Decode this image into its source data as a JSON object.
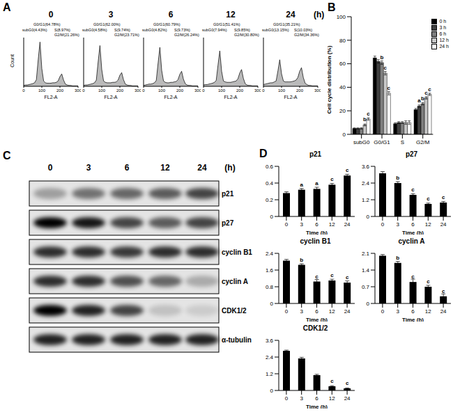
{
  "chart_data": [
    {
      "panel": "A",
      "type": "area",
      "x_label": "FL2-A",
      "y_label": "Count",
      "x": [
        0,
        10,
        20,
        30,
        40,
        50,
        60,
        70,
        80,
        90,
        100,
        110,
        120,
        130,
        140,
        150,
        160,
        170,
        180,
        190,
        200,
        210,
        220,
        230,
        240,
        250,
        260,
        270,
        280,
        290,
        300
      ],
      "xlim": [
        0,
        300
      ],
      "xticks": [
        0,
        100,
        200,
        300
      ],
      "ylim": [
        0,
        110
      ],
      "yticks": [
        0,
        50,
        100
      ],
      "tick_labels": "x",
      "color": "#8c8c8c",
      "time_unit": "(h)",
      "series": [
        {
          "name": "0",
          "gates": [
            "subG0(4.43%)",
            "G0/G1(64.78%)",
            "S(8.97%)",
            "G2/M(21.26%)"
          ],
          "values": [
            2,
            3,
            3,
            4,
            5,
            6,
            8,
            15,
            60,
            100,
            40,
            12,
            8,
            7,
            7,
            7,
            8,
            8,
            9,
            12,
            22,
            28,
            14,
            5,
            3,
            2,
            2,
            1,
            1,
            1,
            1
          ]
        },
        {
          "name": "3",
          "gates": [
            "subG0(4.58%)",
            "G0/G1(62.00%)",
            "S(9.74%)",
            "G2/M(23.71%)"
          ],
          "values": [
            2,
            3,
            3,
            4,
            5,
            6,
            8,
            14,
            55,
            92,
            38,
            12,
            9,
            8,
            8,
            8,
            9,
            9,
            10,
            14,
            25,
            31,
            15,
            5,
            3,
            2,
            2,
            1,
            1,
            1,
            1
          ]
        },
        {
          "name": "6",
          "gates": [
            "subG0(4.82%)",
            "G0/G1(60.79%)",
            "S(9.73%)",
            "G2/M(26.24%)"
          ],
          "values": [
            2,
            3,
            4,
            5,
            5,
            6,
            8,
            13,
            52,
            88,
            36,
            12,
            9,
            8,
            8,
            9,
            9,
            10,
            11,
            15,
            27,
            34,
            16,
            6,
            3,
            2,
            2,
            1,
            1,
            1,
            1
          ]
        },
        {
          "name": "12",
          "gates": [
            "subG0(7.94%)",
            "G0/G1(51.41%)",
            "S(9.85%)",
            "G2/M(30.80%)"
          ],
          "values": [
            3,
            4,
            4,
            5,
            6,
            7,
            9,
            13,
            48,
            80,
            34,
            12,
            10,
            9,
            9,
            9,
            10,
            11,
            12,
            17,
            30,
            38,
            18,
            6,
            3,
            2,
            2,
            1,
            1,
            1,
            1
          ]
        },
        {
          "name": "24",
          "gates": [
            "subG0(13.15%)",
            "G0/G1(35.21%)",
            "S(10.03%)",
            "G2/M(34.36%)"
          ],
          "values": [
            4,
            5,
            6,
            7,
            8,
            8,
            10,
            12,
            35,
            60,
            28,
            12,
            10,
            10,
            10,
            10,
            11,
            12,
            14,
            20,
            34,
            42,
            20,
            7,
            4,
            2,
            2,
            1,
            1,
            1,
            1
          ]
        }
      ]
    },
    {
      "panel": "B",
      "type": "bar",
      "y_label": "Cell cycle distribution (%)",
      "categories": [
        "subG0",
        "G0/G1",
        "S",
        "G2/M"
      ],
      "ylim": [
        0,
        100
      ],
      "yticks": [
        0,
        20,
        40,
        60,
        80,
        100
      ],
      "legend": "top-right",
      "series": [
        {
          "name": "0 h",
          "color": "#000000",
          "values": [
            5,
            65,
            9,
            21
          ],
          "errors": [
            0.5,
            1.5,
            0.8,
            1
          ],
          "letters": [
            null,
            null,
            null,
            null
          ]
        },
        {
          "name": "3 h",
          "color": "#404040",
          "values": [
            5,
            62,
            10,
            24
          ],
          "errors": [
            0.5,
            1.5,
            0.8,
            1
          ],
          "letters": [
            null,
            null,
            null,
            "a"
          ]
        },
        {
          "name": "6 h",
          "color": "#808080",
          "values": [
            5,
            61,
            10,
            26
          ],
          "errors": [
            0.6,
            1.5,
            0.8,
            1
          ],
          "letters": [
            null,
            "b",
            null,
            "b"
          ]
        },
        {
          "name": "12 h",
          "color": "#c8c8c8",
          "values": [
            8,
            52,
            10,
            31
          ],
          "errors": [
            0.8,
            1.5,
            1.5,
            1
          ],
          "letters": [
            "b",
            "c",
            null,
            "c"
          ]
        },
        {
          "name": "24 h",
          "color": "#ffffff",
          "values": [
            13,
            35,
            10,
            34
          ],
          "errors": [
            1,
            1.5,
            1.5,
            1
          ],
          "letters": [
            "c",
            "c",
            null,
            "c"
          ]
        }
      ]
    },
    {
      "panel": "C",
      "type": "blot",
      "lanes": [
        "0",
        "3",
        "6",
        "12",
        "24"
      ],
      "lane_unit": "(h)",
      "rows": [
        {
          "name": "p21",
          "intensity": [
            0.3,
            0.5,
            0.55,
            0.6,
            0.7
          ]
        },
        {
          "name": "p27",
          "intensity": [
            1,
            0.9,
            0.7,
            0.6,
            0.7
          ]
        },
        {
          "name": "cyclin B1",
          "intensity": [
            0.8,
            0.8,
            0.75,
            0.8,
            0.8
          ]
        },
        {
          "name": "cyclin A",
          "intensity": [
            0.8,
            0.8,
            0.65,
            0.55,
            0.25
          ]
        },
        {
          "name": "CDK1/2",
          "intensity": [
            1,
            0.85,
            0.7,
            0.15,
            0.1
          ]
        },
        {
          "name": "α-tubulin",
          "intensity": [
            0.85,
            0.85,
            0.85,
            0.85,
            0.85
          ]
        }
      ]
    },
    {
      "panel": "D",
      "type": "bar",
      "title": "p21",
      "x_label": "Time (h)",
      "categories": [
        "0",
        "3",
        "6",
        "12",
        "24"
      ],
      "values": [
        0.28,
        0.32,
        0.33,
        0.38,
        0.49
      ],
      "errors": [
        0.015,
        0.015,
        0.02,
        0.015,
        0.015
      ],
      "letters": [
        null,
        "a",
        "a",
        "c",
        "c"
      ],
      "ylim": [
        0,
        0.6
      ],
      "yticks": [
        0,
        0.2,
        0.4,
        0.6
      ],
      "color": "#000000"
    },
    {
      "type": "bar",
      "title": "p27",
      "x_label": "Time (h)",
      "categories": [
        "0",
        "3",
        "6",
        "12",
        "24"
      ],
      "values": [
        3.1,
        2.4,
        1.55,
        0.9,
        1.0
      ],
      "errors": [
        0.12,
        0.1,
        0.08,
        0.06,
        0.08
      ],
      "letters": [
        null,
        "b",
        "c",
        "c",
        "c"
      ],
      "ylim": [
        0,
        3.6
      ],
      "yticks": [
        0,
        1.2,
        2.4,
        3.6
      ],
      "color": "#000000"
    },
    {
      "type": "bar",
      "title": "cyclin B1",
      "x_label": "Time (h)",
      "categories": [
        "0",
        "3",
        "6",
        "12",
        "24"
      ],
      "values": [
        2.05,
        1.85,
        1.05,
        1.1,
        1.0
      ],
      "errors": [
        0.06,
        0.05,
        0.1,
        0.06,
        0.08
      ],
      "letters": [
        null,
        "b",
        "c",
        "c",
        "c"
      ],
      "ylim": [
        0,
        2.4
      ],
      "yticks": [
        0,
        0.8,
        1.6,
        2.4
      ],
      "color": "#000000"
    },
    {
      "type": "bar",
      "title": "cyclin A",
      "x_label": "Time (h)",
      "categories": [
        "0",
        "3",
        "6",
        "12",
        "24"
      ],
      "values": [
        2.0,
        1.7,
        0.9,
        0.7,
        0.3
      ],
      "errors": [
        0.05,
        0.06,
        0.12,
        0.06,
        0.1
      ],
      "letters": [
        null,
        "b",
        "c",
        "c",
        "c"
      ],
      "ylim": [
        0,
        2.1
      ],
      "yticks": [
        0,
        0.7,
        1.4,
        2.1
      ],
      "color": "#000000"
    },
    {
      "type": "bar",
      "title": "CDK1/2",
      "x_label": "Time (h)",
      "categories": [
        "0",
        "3",
        "6",
        "12",
        "24"
      ],
      "values": [
        2.85,
        2.3,
        1.1,
        0.3,
        0.15
      ],
      "errors": [
        0.05,
        0.08,
        0.06,
        0.04,
        0.03
      ],
      "letters": [
        null,
        null,
        null,
        "c",
        "c"
      ],
      "ylim": [
        0,
        3.6
      ],
      "yticks": [
        0,
        1.2,
        2.4,
        3.6
      ],
      "color": "#000000"
    }
  ]
}
